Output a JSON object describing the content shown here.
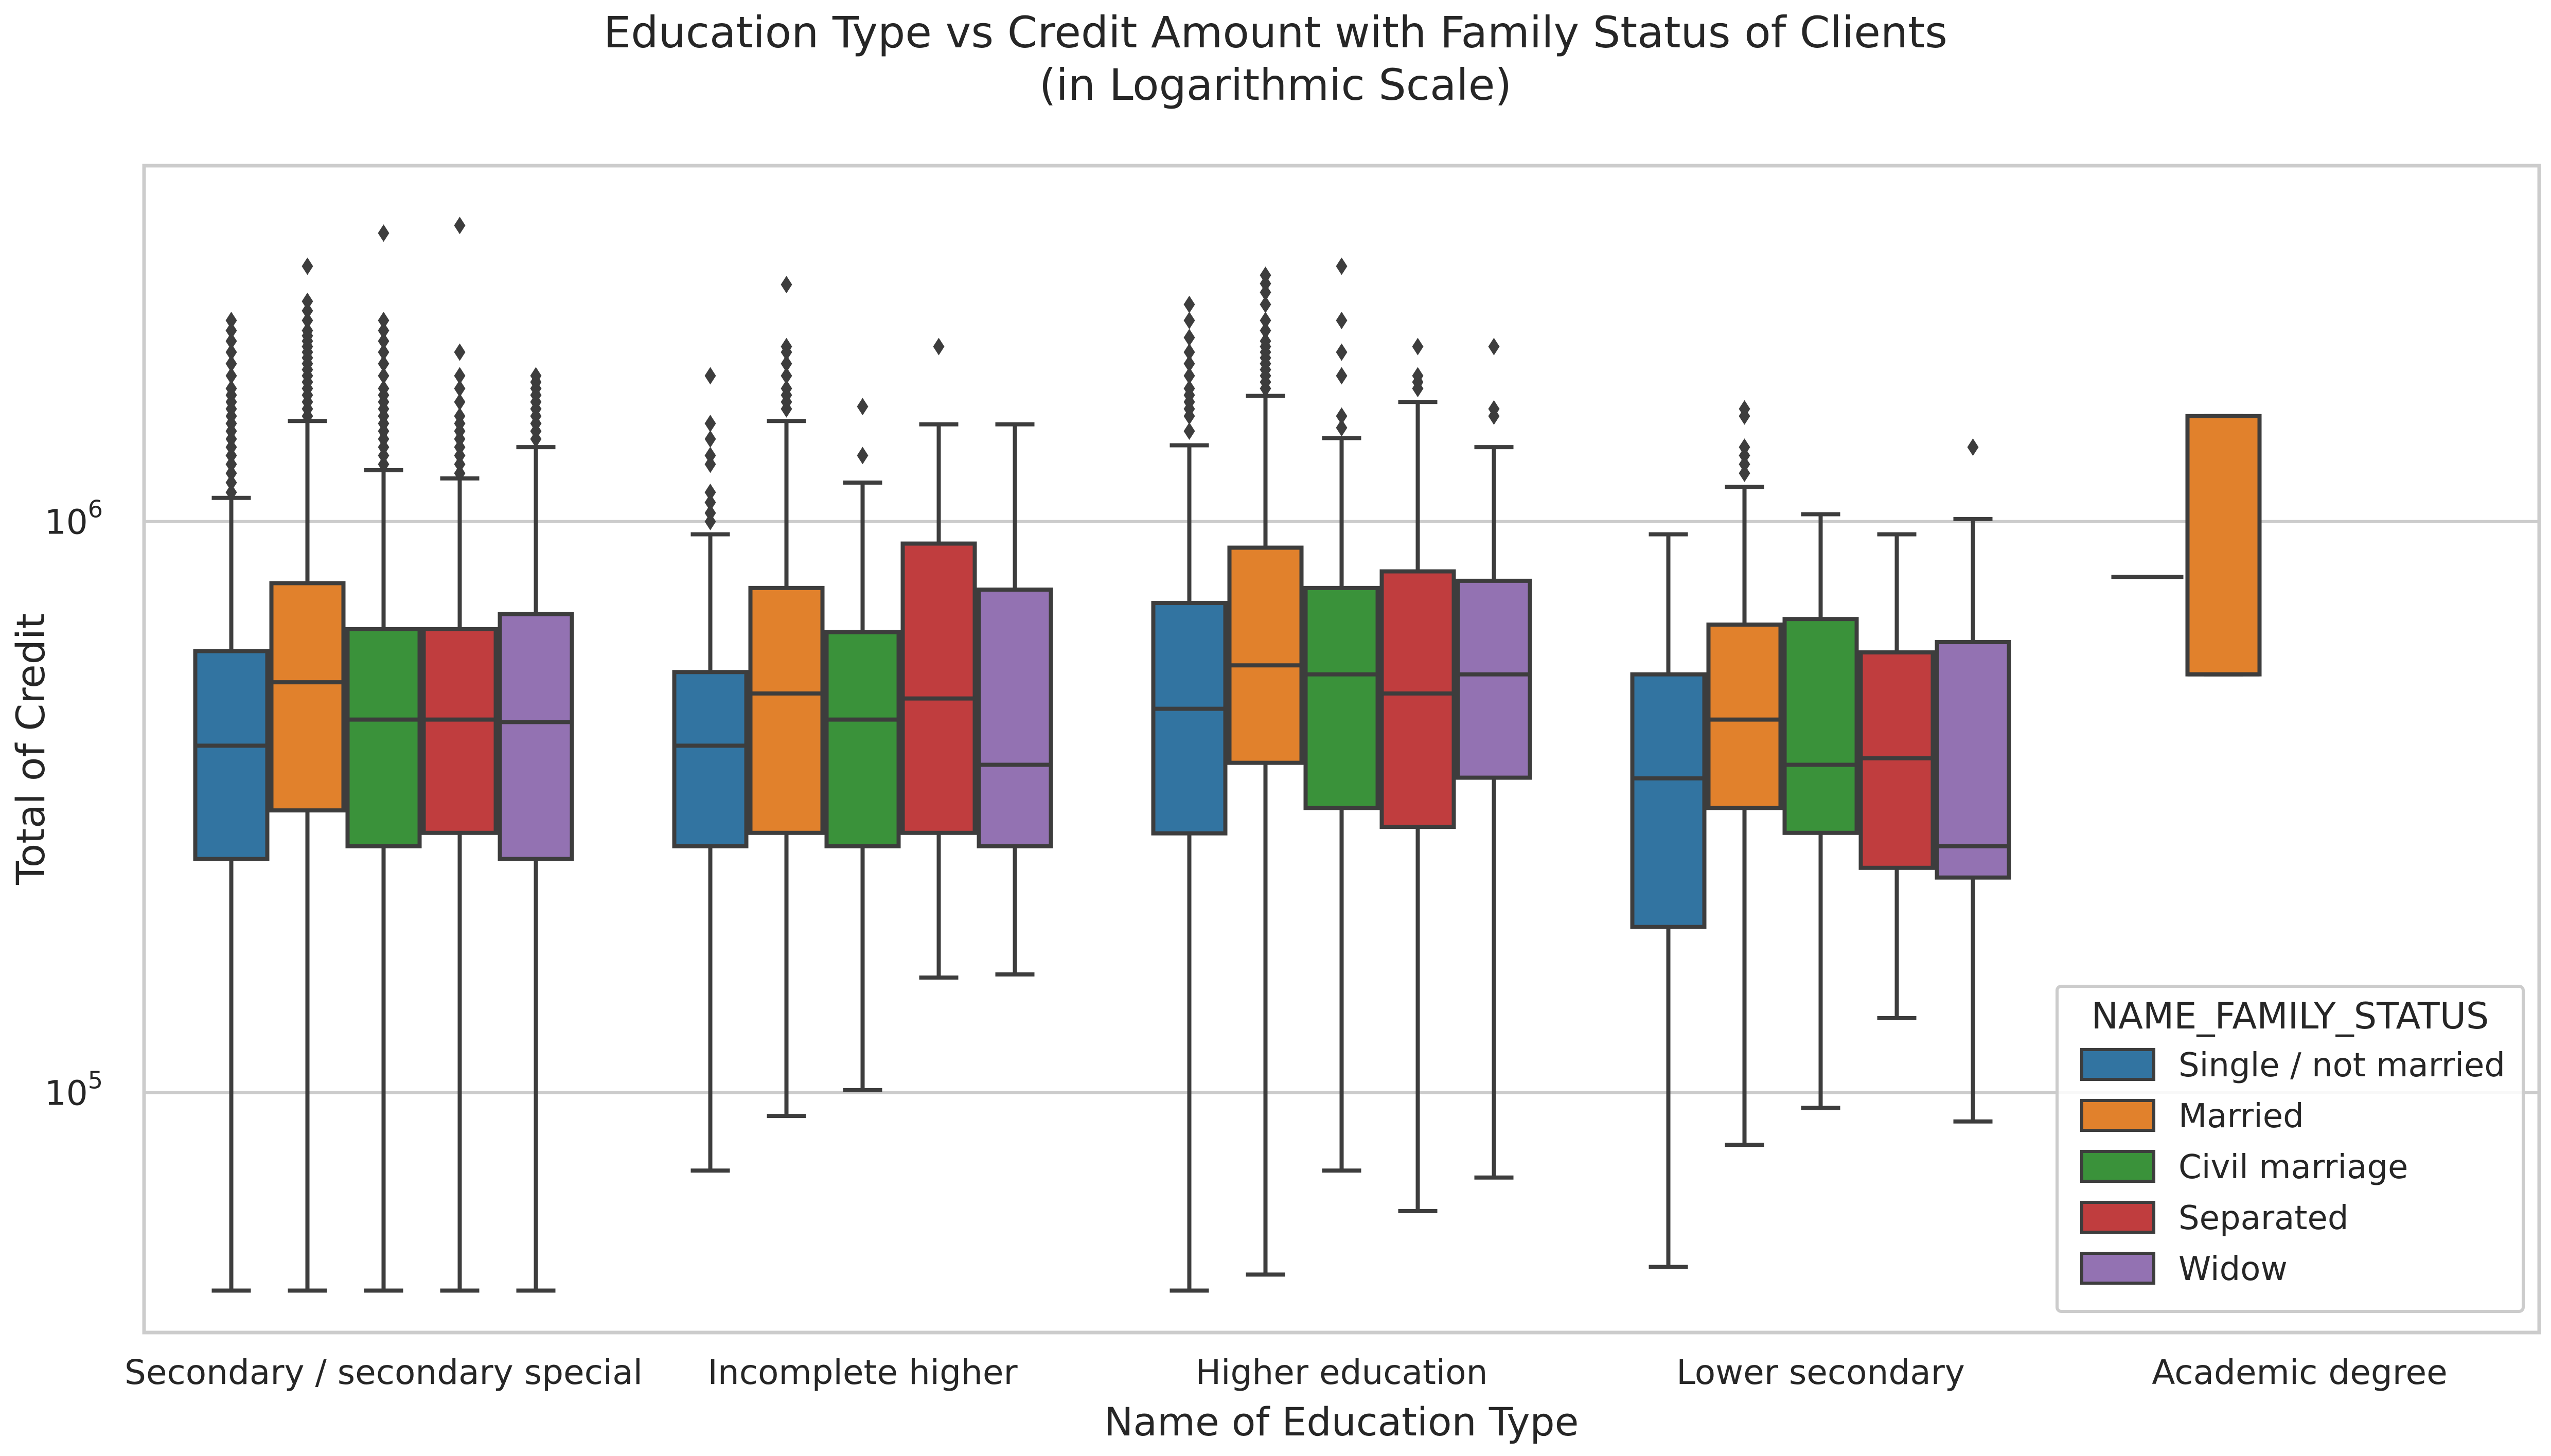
{
  "chart_data": {
    "type": "box",
    "title": "Education Type vs Credit Amount with Family Status of Clients",
    "subtitle": "(in Logarithmic Scale)",
    "xlabel": "Name of Education Type",
    "ylabel": "Total of Credit",
    "yscale": "log",
    "ylim": [
      38000,
      4200000
    ],
    "yticks": [
      {
        "value": 100000,
        "base": "10",
        "exp": "5"
      },
      {
        "value": 1000000,
        "base": "10",
        "exp": "6"
      }
    ],
    "grid": "horizontal",
    "categories": [
      "Secondary / secondary special",
      "Incomplete higher",
      "Higher education",
      "Lower secondary",
      "Academic degree"
    ],
    "legend": {
      "title": "NAME_FAMILY_STATUS",
      "position": "lower-right"
    },
    "series": [
      {
        "name": "Single / not married",
        "color": "#3274a1",
        "boxes": [
          {
            "whislo": 45000,
            "q1": 256500,
            "med": 405000,
            "q3": 593010,
            "whishi": 1100000,
            "fliers": [
              1125000,
              1170000,
              1215000,
              1260000,
              1305000,
              1350000,
              1395000,
              1440000,
              1485000,
              1530000,
              1575000,
              1620000,
              1665000,
              1710000,
              1800000,
              1890000,
              1980000,
              2070000,
              2160000,
              2250000
            ]
          },
          {
            "whislo": 73000,
            "q1": 270000,
            "med": 405000,
            "q3": 545040,
            "whishi": 950000,
            "fliers": [
              1000000,
              1035000,
              1080000,
              1125000,
              1260000,
              1305000,
              1395000,
              1485000,
              1800000
            ]
          },
          {
            "whislo": 45000,
            "q1": 284400,
            "med": 470000,
            "q3": 720000,
            "whishi": 1360000,
            "fliers": [
              1440000,
              1530000,
              1575000,
              1620000,
              1665000,
              1710000,
              1800000,
              1890000,
              1980000,
              2100000,
              2250000,
              2400000
            ]
          },
          {
            "whislo": 49500,
            "q1": 195000,
            "med": 355000,
            "q3": 540000,
            "whishi": 950000,
            "fliers": []
          },
          {
            "single": 800000
          }
        ]
      },
      {
        "name": "Married",
        "color": "#e1812c",
        "boxes": [
          {
            "whislo": 45000,
            "q1": 312000,
            "med": 523000,
            "q3": 780000,
            "whishi": 1500000,
            "fliers": [
              1530000,
              1575000,
              1620000,
              1665000,
              1710000,
              1755000,
              1800000,
              1845000,
              1890000,
              1935000,
              1980000,
              2025000,
              2070000,
              2115000,
              2160000,
              2250000,
              2340000,
              2430000,
              2800000
            ]
          },
          {
            "whislo": 91000,
            "q1": 285000,
            "med": 500000,
            "q3": 765000,
            "whishi": 1500000,
            "fliers": [
              1575000,
              1620000,
              1665000,
              1710000,
              1800000,
              1890000,
              1980000,
              2025000,
              2600000
            ]
          },
          {
            "whislo": 48000,
            "q1": 378000,
            "med": 560000,
            "q3": 900000,
            "whishi": 1660000,
            "fliers": [
              1710000,
              1755000,
              1800000,
              1845000,
              1890000,
              1935000,
              1980000,
              2025000,
              2070000,
              2160000,
              2250000,
              2400000,
              2520000,
              2610000,
              2700000
            ]
          },
          {
            "whislo": 81000,
            "q1": 315000,
            "med": 450000,
            "q3": 660000,
            "whishi": 1150000,
            "fliers": [
              1215000,
              1260000,
              1305000,
              1350000,
              1530000,
              1575000
            ]
          },
          {
            "whislo": 540000,
            "q1": 540000,
            "med": 540000,
            "q3": 1530000,
            "whishi": 1530000,
            "fliers": []
          }
        ]
      },
      {
        "name": "Civil marriage",
        "color": "#3a923a",
        "boxes": [
          {
            "whislo": 45000,
            "q1": 270000,
            "med": 450000,
            "q3": 648000,
            "whishi": 1230000,
            "fliers": [
              1260000,
              1305000,
              1350000,
              1395000,
              1440000,
              1485000,
              1530000,
              1575000,
              1620000,
              1665000,
              1710000,
              1800000,
              1890000,
              1980000,
              2070000,
              2160000,
              2250000,
              3200000
            ]
          },
          {
            "whislo": 101000,
            "q1": 270000,
            "med": 450000,
            "q3": 640000,
            "whishi": 1170000,
            "fliers": [
              1305000,
              1590000
            ]
          },
          {
            "whislo": 73000,
            "q1": 315000,
            "med": 540000,
            "q3": 765000,
            "whishi": 1400000,
            "fliers": [
              1460000,
              1530000,
              1800000,
              1980000,
              2250000,
              2800000
            ]
          },
          {
            "whislo": 94000,
            "q1": 285000,
            "med": 375000,
            "q3": 675000,
            "whishi": 1030000,
            "fliers": []
          }
        ]
      },
      {
        "name": "Separated",
        "color": "#c03d3e",
        "boxes": [
          {
            "whislo": 45000,
            "q1": 285000,
            "med": 450000,
            "q3": 648000,
            "whishi": 1190000,
            "fliers": [
              1215000,
              1260000,
              1305000,
              1350000,
              1395000,
              1440000,
              1485000,
              1530000,
              1620000,
              1710000,
              1800000,
              1980000,
              3300000
            ]
          },
          {
            "whislo": 159000,
            "q1": 285000,
            "med": 490000,
            "q3": 915000,
            "whishi": 1480000,
            "fliers": [
              2025000
            ]
          },
          {
            "whislo": 62000,
            "q1": 292000,
            "med": 500000,
            "q3": 818000,
            "whishi": 1620000,
            "fliers": [
              1710000,
              1755000,
              1800000,
              2025000
            ]
          },
          {
            "whislo": 135000,
            "q1": 247500,
            "med": 385000,
            "q3": 590000,
            "whishi": 950000,
            "fliers": []
          }
        ]
      },
      {
        "name": "Widow",
        "color": "#9372b2",
        "boxes": [
          {
            "whislo": 45000,
            "q1": 256500,
            "med": 445500,
            "q3": 688500,
            "whishi": 1350000,
            "fliers": [
              1395000,
              1440000,
              1485000,
              1530000,
              1575000,
              1620000,
              1665000,
              1710000,
              1755000,
              1800000
            ]
          },
          {
            "whislo": 161000,
            "q1": 270000,
            "med": 375000,
            "q3": 760000,
            "whishi": 1480000,
            "fliers": []
          },
          {
            "whislo": 71000,
            "q1": 356000,
            "med": 540000,
            "q3": 787500,
            "whishi": 1350000,
            "fliers": [
              1530000,
              1575000,
              2025000
            ]
          },
          {
            "whislo": 89000,
            "q1": 238000,
            "med": 270000,
            "q3": 615000,
            "whishi": 1010000,
            "fliers": [
              1350000
            ]
          }
        ]
      }
    ]
  }
}
